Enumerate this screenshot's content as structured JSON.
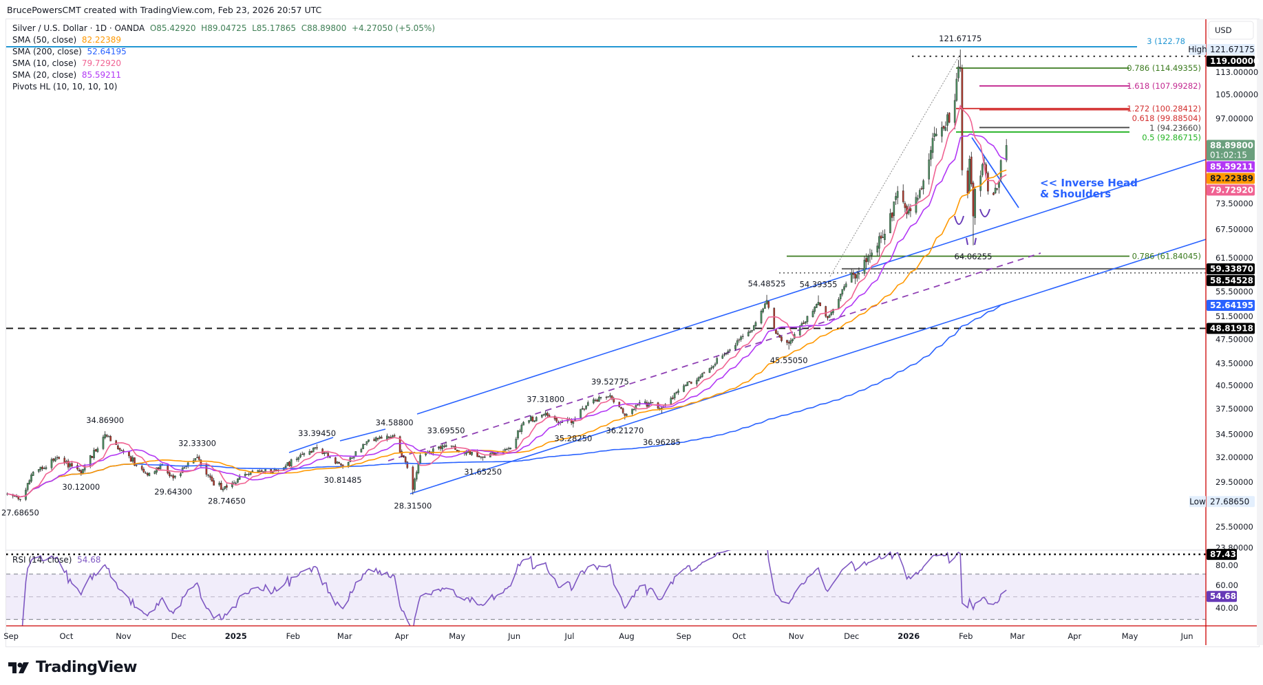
{
  "header": {
    "attribution": "BrucePowersCMT created with TradingView.com, Feb 23, 2026 20:57 UTC"
  },
  "legend": {
    "symbol": "Silver / U.S. Dollar · 1D · OANDA",
    "open": "O85.42920",
    "high": "H89.04725",
    "low": "L85.17865",
    "close": "C88.89800",
    "change": "+4.27050 (+5.05%)",
    "indicators": [
      {
        "label": "SMA (50, close)",
        "value": "82.22389",
        "color": "#ff9800"
      },
      {
        "label": "SMA (200, close)",
        "value": "52.64195",
        "color": "#2962ff"
      },
      {
        "label": "SMA (10, close)",
        "value": "79.72920",
        "color": "#f06292"
      },
      {
        "label": "SMA (20, close)",
        "value": "85.59211",
        "color": "#b237f5"
      },
      {
        "label": "Pivots HL (10, 10, 10, 10)",
        "value": "",
        "color": "#131722"
      }
    ]
  },
  "price_axis": {
    "currency": "USD",
    "ticks": [
      "113.00000",
      "105.00000",
      "97.00000",
      "73.50000",
      "67.50000",
      "61.50000",
      "55.50000",
      "51.50000",
      "47.50000",
      "43.50000",
      "40.50000",
      "37.50000",
      "34.50000",
      "32.00000",
      "29.50000",
      "25.50000",
      "23.80000"
    ],
    "badges": [
      {
        "value": "121.67175",
        "tag": "High",
        "bg": "#e3effd",
        "fg": "#131722"
      },
      {
        "value": "119.00000",
        "bg": "#000000",
        "fg": "#ffffff"
      },
      {
        "value": "88.89800",
        "sub": "01:02:15",
        "bg": "#6a9f7d",
        "fg": "#ffffff"
      },
      {
        "value": "85.59211",
        "bg": "#b237f5",
        "fg": "#ffffff"
      },
      {
        "value": "82.22389",
        "bg": "#ff9800",
        "fg": "#131722"
      },
      {
        "value": "79.72920",
        "bg": "#f06292",
        "fg": "#ffffff"
      },
      {
        "value": "59.33870",
        "bg": "#000000",
        "fg": "#ffffff"
      },
      {
        "value": "58.54528",
        "bg": "#000000",
        "fg": "#ffffff"
      },
      {
        "value": "52.64195",
        "bg": "#2962ff",
        "fg": "#ffffff"
      },
      {
        "value": "48.81918",
        "bg": "#000000",
        "fg": "#ffffff"
      },
      {
        "value": "27.68650",
        "tag": "Low",
        "bg": "#e3effd",
        "fg": "#131722"
      }
    ]
  },
  "time_axis": [
    {
      "label": "Sep",
      "date": "2024-09-01"
    },
    {
      "label": "Oct",
      "date": "2024-10-01"
    },
    {
      "label": "Nov",
      "date": "2024-11-01"
    },
    {
      "label": "Dec",
      "date": "2024-12-01"
    },
    {
      "label": "2025",
      "date": "2025-01-01",
      "bold": true
    },
    {
      "label": "Feb",
      "date": "2025-02-01"
    },
    {
      "label": "Mar",
      "date": "2025-03-01"
    },
    {
      "label": "Apr",
      "date": "2025-04-01"
    },
    {
      "label": "May",
      "date": "2025-05-01"
    },
    {
      "label": "Jun",
      "date": "2025-06-01"
    },
    {
      "label": "Jul",
      "date": "2025-07-01"
    },
    {
      "label": "Aug",
      "date": "2025-08-01"
    },
    {
      "label": "Sep",
      "date": "2025-09-01"
    },
    {
      "label": "Oct",
      "date": "2025-10-01"
    },
    {
      "label": "Nov",
      "date": "2025-11-01"
    },
    {
      "label": "Dec",
      "date": "2025-12-01"
    },
    {
      "label": "2026",
      "date": "2026-01-01",
      "bold": true
    },
    {
      "label": "Feb",
      "date": "2026-02-01"
    },
    {
      "label": "Mar",
      "date": "2026-03-01"
    },
    {
      "label": "Apr",
      "date": "2026-04-01"
    },
    {
      "label": "May",
      "date": "2026-05-01"
    },
    {
      "label": "Jun",
      "date": "2026-06-01"
    }
  ],
  "rsi": {
    "label": "RSI (14, close)",
    "value": "54.68",
    "color": "#7e57c2",
    "axis_labels": [
      "80.00",
      "60.00",
      "40.00"
    ],
    "bands": [
      70,
      50,
      30
    ],
    "max_marker": "87.43"
  },
  "annotations": {
    "pattern_text_1": "<< Inverse Head",
    "pattern_text_2": "& Shoulders",
    "fib_levels": [
      {
        "label": "3 (122.78",
        "price": 122.78,
        "color": "#2196d3"
      },
      {
        "label": "0.786 (114.49355)",
        "price": 114.49355,
        "color": "#3a7a1e"
      },
      {
        "label": "1.618 (107.99282)",
        "price": 107.99282,
        "color": "#c2278f"
      },
      {
        "label": "1.272 (100.28412)",
        "price": 100.28412,
        "color": "#d32f2f"
      },
      {
        "label": "0.618 (99.88504)",
        "price": 99.88504,
        "color": "#d32f2f"
      },
      {
        "label": "1 (94.23660)",
        "price": 94.2366,
        "color": "#444444"
      },
      {
        "label": "0.5 (92.86715)",
        "price": 92.86715,
        "color": "#22b322"
      },
      {
        "label": "0.786 (61.84045)",
        "price": 61.84045,
        "color": "#3a7a1e"
      }
    ],
    "levels": {
      "dotted_top": 119.0,
      "gray": 59.3387,
      "dotted_low": 58.54528,
      "dashed": 48.81918
    }
  },
  "chart_data": {
    "type": "candlestick",
    "symbol": "Silver / U.S. Dollar",
    "interval": "1D",
    "y_scale": "log",
    "ylim": [
      23.8,
      125
    ],
    "last_close": 88.898,
    "up_color": "#4d8f61",
    "down_color": "#b23a2e",
    "approx_closes": [
      [
        "2024-08-30",
        28.4
      ],
      [
        "2024-09-06",
        27.9
      ],
      [
        "2024-09-13",
        30.5
      ],
      [
        "2024-09-26",
        32.0
      ],
      [
        "2024-10-09",
        30.4
      ],
      [
        "2024-10-22",
        34.5
      ],
      [
        "2024-11-01",
        32.6
      ],
      [
        "2024-11-14",
        30.2
      ],
      [
        "2024-11-22",
        31.3
      ],
      [
        "2024-11-28",
        29.9
      ],
      [
        "2024-12-11",
        32.0
      ],
      [
        "2024-12-20",
        29.2
      ],
      [
        "2024-12-27",
        29.0
      ],
      [
        "2025-01-10",
        30.6
      ],
      [
        "2025-01-24",
        30.7
      ],
      [
        "2025-02-07",
        32.4
      ],
      [
        "2025-02-14",
        33.0
      ],
      [
        "2025-02-28",
        31.1
      ],
      [
        "2025-03-14",
        33.9
      ],
      [
        "2025-03-28",
        34.3
      ],
      [
        "2025-04-03",
        31.5
      ],
      [
        "2025-04-07",
        28.8
      ],
      [
        "2025-04-11",
        32.2
      ],
      [
        "2025-04-25",
        33.3
      ],
      [
        "2025-05-15",
        32.0
      ],
      [
        "2025-05-30",
        33.0
      ],
      [
        "2025-06-06",
        35.9
      ],
      [
        "2025-06-18",
        37.0
      ],
      [
        "2025-06-25",
        35.8
      ],
      [
        "2025-07-03",
        36.0
      ],
      [
        "2025-07-11",
        38.3
      ],
      [
        "2025-07-23",
        39.2
      ],
      [
        "2025-07-31",
        36.7
      ],
      [
        "2025-08-08",
        38.3
      ],
      [
        "2025-08-20",
        37.6
      ],
      [
        "2025-08-29",
        39.8
      ],
      [
        "2025-09-12",
        42.2
      ],
      [
        "2025-09-26",
        45.5
      ],
      [
        "2025-10-08",
        48.5
      ],
      [
        "2025-10-16",
        53.5
      ],
      [
        "2025-10-21",
        48.0
      ],
      [
        "2025-10-28",
        46.5
      ],
      [
        "2025-11-13",
        53.2
      ],
      [
        "2025-11-18",
        50.5
      ],
      [
        "2025-11-28",
        56.5
      ],
      [
        "2025-12-05",
        58.5
      ],
      [
        "2025-12-12",
        62.5
      ],
      [
        "2025-12-19",
        66.5
      ],
      [
        "2025-12-26",
        76.5
      ],
      [
        "2025-12-31",
        71.0
      ],
      [
        "2026-01-08",
        77.0
      ],
      [
        "2026-01-14",
        91.0
      ],
      [
        "2026-01-20",
        94.0
      ],
      [
        "2026-01-26",
        103.0
      ],
      [
        "2026-01-28",
        115.0
      ],
      [
        "2026-01-29",
        114.5
      ],
      [
        "2026-01-30",
        82.0
      ],
      [
        "2026-02-02",
        76.0
      ],
      [
        "2026-02-03",
        85.0
      ],
      [
        "2026-02-05",
        70.5
      ],
      [
        "2026-02-06",
        77.0
      ],
      [
        "2026-02-11",
        84.0
      ],
      [
        "2026-02-13",
        76.5
      ],
      [
        "2026-02-18",
        77.0
      ],
      [
        "2026-02-20",
        84.6
      ],
      [
        "2026-02-23",
        88.898
      ]
    ],
    "pivots": [
      {
        "label": "27.68650",
        "date": "2024-09-06",
        "price": 27.6865,
        "kind": "low"
      },
      {
        "label": "30.12000",
        "date": "2024-10-09",
        "price": 30.12,
        "kind": "low"
      },
      {
        "label": "34.86900",
        "date": "2024-10-22",
        "price": 34.869,
        "kind": "high"
      },
      {
        "label": "29.64300",
        "date": "2024-11-28",
        "price": 29.643,
        "kind": "low"
      },
      {
        "label": "32.33300",
        "date": "2024-12-11",
        "price": 32.333,
        "kind": "high"
      },
      {
        "label": "28.74650",
        "date": "2024-12-27",
        "price": 28.7465,
        "kind": "low"
      },
      {
        "label": "33.39450",
        "date": "2025-02-14",
        "price": 33.3945,
        "kind": "high"
      },
      {
        "label": "30.81485",
        "date": "2025-02-28",
        "price": 30.81485,
        "kind": "low"
      },
      {
        "label": "34.58800",
        "date": "2025-03-28",
        "price": 34.588,
        "kind": "high"
      },
      {
        "label": "28.31500",
        "date": "2025-04-07",
        "price": 28.315,
        "kind": "low"
      },
      {
        "label": "33.69550",
        "date": "2025-04-25",
        "price": 33.6955,
        "kind": "high"
      },
      {
        "label": "31.65250",
        "date": "2025-05-15",
        "price": 31.6525,
        "kind": "low"
      },
      {
        "label": "37.31800",
        "date": "2025-06-18",
        "price": 37.318,
        "kind": "high"
      },
      {
        "label": "35.28250",
        "date": "2025-07-03",
        "price": 35.2825,
        "kind": "low"
      },
      {
        "label": "39.52775",
        "date": "2025-07-23",
        "price": 39.52775,
        "kind": "high"
      },
      {
        "label": "36.21270",
        "date": "2025-07-31",
        "price": 36.2127,
        "kind": "low"
      },
      {
        "label": "36.96285",
        "date": "2025-08-20",
        "price": 36.96285,
        "kind": "low"
      },
      {
        "label": "54.48525",
        "date": "2025-10-16",
        "price": 54.48525,
        "kind": "high"
      },
      {
        "label": "45.55050",
        "date": "2025-10-28",
        "price": 45.5505,
        "kind": "low"
      },
      {
        "label": "54.39355",
        "date": "2025-11-13",
        "price": 54.39355,
        "kind": "high"
      },
      {
        "label": "121.67175",
        "date": "2026-01-29",
        "price": 121.67175,
        "kind": "high"
      },
      {
        "label": "64.06255",
        "date": "2026-02-05",
        "price": 64.06255,
        "kind": "low"
      }
    ]
  },
  "footer": {
    "logo_text": "TradingView"
  }
}
